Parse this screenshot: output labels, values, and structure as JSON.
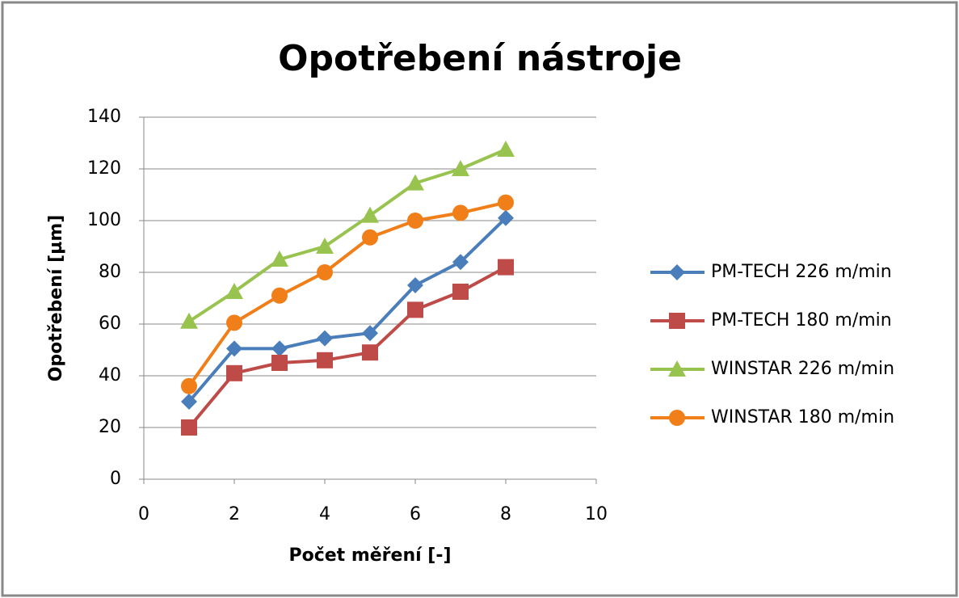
{
  "chart_data": {
    "type": "line",
    "title": "Opotřebení nástroje",
    "x_label": "Počet měření  [-]",
    "y_label": "Opotřebení [µm]",
    "x": [
      1,
      2,
      3,
      4,
      5,
      6,
      7,
      8
    ],
    "series": [
      {
        "name": "PM-TECH 226 m/min",
        "color": "#4a7ebb",
        "marker": "diamond",
        "values": [
          30,
          50.5,
          50.5,
          54.5,
          56.5,
          75,
          84,
          101
        ]
      },
      {
        "name": "PM-TECH 180 m/min",
        "color": "#be4b48",
        "marker": "square",
        "values": [
          20,
          41,
          45,
          46,
          49,
          65.5,
          72.5,
          82
        ]
      },
      {
        "name": "WINSTAR 226 m/min",
        "color": "#98c34f",
        "marker": "triangle",
        "values": [
          61,
          72.5,
          85,
          90,
          102,
          114.5,
          120,
          127.5
        ]
      },
      {
        "name": "WINSTAR 180 m/min",
        "color": "#f07f1a",
        "marker": "circle",
        "values": [
          36,
          60.5,
          71,
          80,
          93.5,
          100,
          103,
          107
        ]
      }
    ],
    "xlim": [
      0,
      10
    ],
    "xticks": [
      0,
      2,
      4,
      6,
      8,
      10
    ],
    "ylim": [
      0,
      140
    ],
    "yticks": [
      0,
      20,
      40,
      60,
      80,
      100,
      120,
      140
    ],
    "grid": true,
    "legend": "right"
  }
}
